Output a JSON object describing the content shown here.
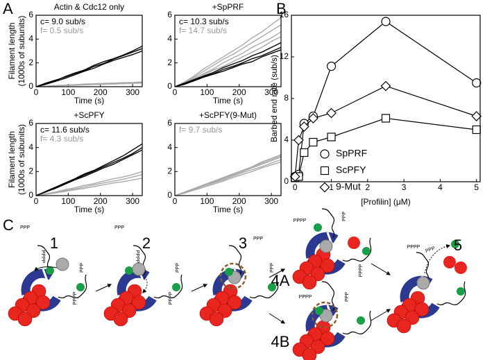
{
  "panel_labels": [
    "A",
    "B",
    "C"
  ],
  "chart_data": [
    {
      "type": "line",
      "title": "Actin & Cdc12 only",
      "xlabel": "Time (s)",
      "ylabel": [
        "Filament length",
        "(1000s of subunits)"
      ],
      "annotations": [
        {
          "text": "c= 9.0 sub/s",
          "color": "#000000"
        },
        {
          "text": "f= 0.5 sub/s",
          "color": "#999999"
        }
      ],
      "xlim": [
        0,
        330
      ],
      "ylim": [
        0,
        6
      ],
      "xticks": [
        0,
        100,
        200,
        300
      ],
      "yticks": [
        0,
        2,
        4,
        6
      ],
      "x": [
        0,
        30,
        60,
        90,
        120,
        150,
        180,
        210,
        240,
        270,
        300,
        330
      ],
      "series": [
        {
          "color": "#aaaaaa",
          "values": [
            0,
            0.05,
            0.1,
            0.12,
            0.15,
            0.2,
            0.2,
            0.25,
            0.3,
            0.3,
            0.32,
            0.35
          ]
        },
        {
          "color": "#aaaaaa",
          "values": [
            0,
            0.03,
            0.06,
            0.1,
            0.12,
            0.15,
            0.18,
            0.2,
            0.22,
            0.25,
            0.28,
            0.3
          ]
        },
        {
          "color": "#aaaaaa",
          "values": [
            0,
            0.04,
            0.08,
            0.14,
            0.18,
            0.22,
            0.25,
            0.28,
            0.3,
            0.34,
            0.36,
            0.4
          ]
        },
        {
          "color": "#000000",
          "values": [
            0,
            0.3,
            0.55,
            0.8,
            1.1,
            1.35,
            1.7,
            1.95,
            2.3,
            2.6,
            2.9,
            3.2
          ]
        },
        {
          "color": "#000000",
          "values": [
            0,
            0.25,
            0.5,
            0.85,
            1.15,
            1.4,
            1.8,
            2.1,
            2.35,
            2.65,
            3.0,
            3.4
          ]
        },
        {
          "color": "#000000",
          "values": [
            0,
            0.2,
            0.45,
            0.7,
            1.0,
            1.3,
            1.55,
            1.9,
            2.2,
            2.45,
            2.7,
            3.0
          ]
        }
      ]
    },
    {
      "type": "line",
      "title": "+SpPRF",
      "xlabel": "Time (s)",
      "annotations": [
        {
          "text": "c= 10.3 sub/s",
          "color": "#000000"
        },
        {
          "text": "f= 14.7 sub/s",
          "color": "#999999"
        }
      ],
      "xlim": [
        0,
        330
      ],
      "ylim": [
        0,
        6
      ],
      "xticks": [
        0,
        100,
        200,
        300
      ],
      "yticks": [
        0,
        2,
        4,
        6
      ],
      "x": [
        0,
        30,
        60,
        90,
        120,
        150,
        180,
        210,
        240,
        270,
        300,
        330
      ],
      "series": [
        {
          "color": "#aaaaaa",
          "values": [
            0,
            0.4,
            0.9,
            1.5,
            2.0,
            2.5,
            3.0,
            3.5,
            4.1,
            4.6,
            5.2,
            5.8
          ]
        },
        {
          "color": "#aaaaaa",
          "values": [
            0,
            0.35,
            0.8,
            1.3,
            1.8,
            2.3,
            2.7,
            3.2,
            3.7,
            4.2,
            4.7,
            5.2
          ]
        },
        {
          "color": "#aaaaaa",
          "values": [
            0,
            0.3,
            0.7,
            1.1,
            1.5,
            2.0,
            2.4,
            2.8,
            3.3,
            3.7,
            4.1,
            4.6
          ]
        },
        {
          "color": "#aaaaaa",
          "values": [
            0,
            0.25,
            0.6,
            1.0,
            1.4,
            1.7,
            2.1,
            2.5,
            2.9,
            3.3,
            3.8,
            4.2
          ]
        },
        {
          "color": "#000000",
          "values": [
            0,
            0.3,
            0.6,
            0.9,
            1.2,
            1.6,
            1.9,
            2.2,
            2.6,
            2.9,
            3.3,
            3.7
          ]
        },
        {
          "color": "#000000",
          "values": [
            0,
            0.25,
            0.55,
            0.85,
            1.1,
            1.45,
            1.7,
            2.0,
            2.35,
            2.6,
            2.95,
            3.3
          ]
        },
        {
          "color": "#000000",
          "values": [
            0,
            0.2,
            0.5,
            0.8,
            1.05,
            1.3,
            1.6,
            1.9,
            2.1,
            2.5,
            2.8,
            3.1
          ]
        }
      ]
    },
    {
      "type": "line",
      "title": "+ScPFY",
      "xlabel": "Time (s)",
      "ylabel": [
        "Filament length",
        "(1000s of subunits)"
      ],
      "annotations": [
        {
          "text": "c= 11.6 sub/s",
          "color": "#000000"
        },
        {
          "text": "f= 4.3 sub/s",
          "color": "#999999"
        }
      ],
      "xlim": [
        0,
        330
      ],
      "ylim": [
        0,
        6
      ],
      "xticks": [
        0,
        100,
        200,
        300
      ],
      "yticks": [
        0,
        2,
        4,
        6
      ],
      "x": [
        0,
        30,
        60,
        90,
        120,
        150,
        180,
        210,
        240,
        270,
        300,
        330
      ],
      "series": [
        {
          "color": "#aaaaaa",
          "values": [
            0,
            0.15,
            0.3,
            0.5,
            0.65,
            0.85,
            1.0,
            1.2,
            1.4,
            1.55,
            1.75,
            2.0
          ]
        },
        {
          "color": "#aaaaaa",
          "values": [
            0,
            0.12,
            0.25,
            0.42,
            0.55,
            0.72,
            0.9,
            1.05,
            1.2,
            1.35,
            1.55,
            1.75
          ]
        },
        {
          "color": "#aaaaaa",
          "values": [
            0,
            0.1,
            0.22,
            0.35,
            0.48,
            0.6,
            0.75,
            0.9,
            1.05,
            1.15,
            1.3,
            1.45
          ]
        },
        {
          "color": "#000000",
          "values": [
            0,
            0.35,
            0.7,
            1.05,
            1.4,
            1.8,
            2.1,
            2.5,
            2.9,
            3.3,
            3.8,
            4.3
          ]
        },
        {
          "color": "#000000",
          "values": [
            0,
            0.3,
            0.65,
            1.0,
            1.35,
            1.7,
            2.05,
            2.4,
            2.75,
            3.1,
            3.5,
            4.0
          ]
        },
        {
          "color": "#000000",
          "values": [
            0,
            0.32,
            0.6,
            0.95,
            1.3,
            1.6,
            1.95,
            2.3,
            2.6,
            3.0,
            3.4,
            3.8
          ]
        }
      ]
    },
    {
      "type": "line",
      "title": "+ScPFY(9-Mut)",
      "xlabel": "Time (s)",
      "annotations": [
        {
          "text": "f= 9.7 sub/s",
          "color": "#999999"
        }
      ],
      "xlim": [
        0,
        330
      ],
      "ylim": [
        0,
        6
      ],
      "xticks": [
        0,
        100,
        200,
        300
      ],
      "yticks": [
        0,
        2,
        4,
        6
      ],
      "x": [
        0,
        30,
        60,
        90,
        120,
        150,
        180,
        210,
        240,
        270,
        300,
        330
      ],
      "series": [
        {
          "color": "#aaaaaa",
          "values": [
            0,
            0.3,
            0.6,
            0.9,
            1.2,
            1.5,
            1.8,
            2.1,
            2.4,
            2.8,
            3.1,
            3.4
          ]
        },
        {
          "color": "#aaaaaa",
          "values": [
            0,
            0.25,
            0.55,
            0.85,
            1.1,
            1.4,
            1.7,
            2.0,
            2.3,
            2.6,
            2.9,
            3.2
          ]
        },
        {
          "color": "#aaaaaa",
          "values": [
            0,
            0.2,
            0.5,
            0.8,
            1.05,
            1.3,
            1.6,
            1.9,
            2.15,
            2.4,
            2.7,
            3.0
          ]
        },
        {
          "color": "#aaaaaa",
          "values": [
            0,
            0.22,
            0.45,
            0.7,
            0.95,
            1.2,
            1.5,
            1.75,
            2.0,
            2.3,
            2.55,
            2.8
          ]
        },
        {
          "color": "#aaaaaa",
          "values": [
            0,
            0.28,
            0.58,
            0.88,
            1.15,
            1.45,
            1.75,
            2.05,
            2.35,
            2.7,
            3.0,
            3.3
          ]
        }
      ]
    },
    {
      "type": "line",
      "xlabel": "[Profilin] (μM)",
      "ylabel": "Barbed end rate (sub/s)",
      "xlim": [
        -0.1,
        5.1
      ],
      "ylim": [
        0,
        16
      ],
      "xticks": [
        0,
        1,
        2,
        3,
        4,
        5
      ],
      "yticks": [
        0,
        4,
        8,
        12,
        16
      ],
      "x": [
        0,
        0.1,
        0.25,
        0.5,
        1,
        2.5,
        5
      ],
      "series": [
        {
          "name": "SpPRF",
          "color": "#000000",
          "marker": "circle",
          "values": [
            0.5,
            0.7,
            5.6,
            6.3,
            11.1,
            15.4,
            9.5
          ]
        },
        {
          "name": "ScPFY",
          "color": "#000000",
          "marker": "square",
          "values": [
            0.4,
            0.5,
            2.8,
            3.8,
            4.3,
            6.1,
            5.0
          ]
        },
        {
          "name": "9-Mut",
          "color": "#000000",
          "marker": "diamond",
          "values": [
            0.5,
            4.0,
            5.3,
            6.1,
            6.6,
            9.2,
            6.3
          ]
        }
      ]
    }
  ],
  "diagram": {
    "steps": [
      "1",
      "2",
      "3",
      "4A",
      "4B",
      "5"
    ],
    "tags": [
      "PPP",
      "PPPP",
      "PPP",
      "PPPP",
      "PPP",
      "PPPP",
      "PPP",
      "PPPP",
      "PPP",
      "PPP",
      "PPPP",
      "PPP",
      "PPPP",
      "PPPP",
      "PPP",
      "PPPP",
      "PPP"
    ]
  }
}
